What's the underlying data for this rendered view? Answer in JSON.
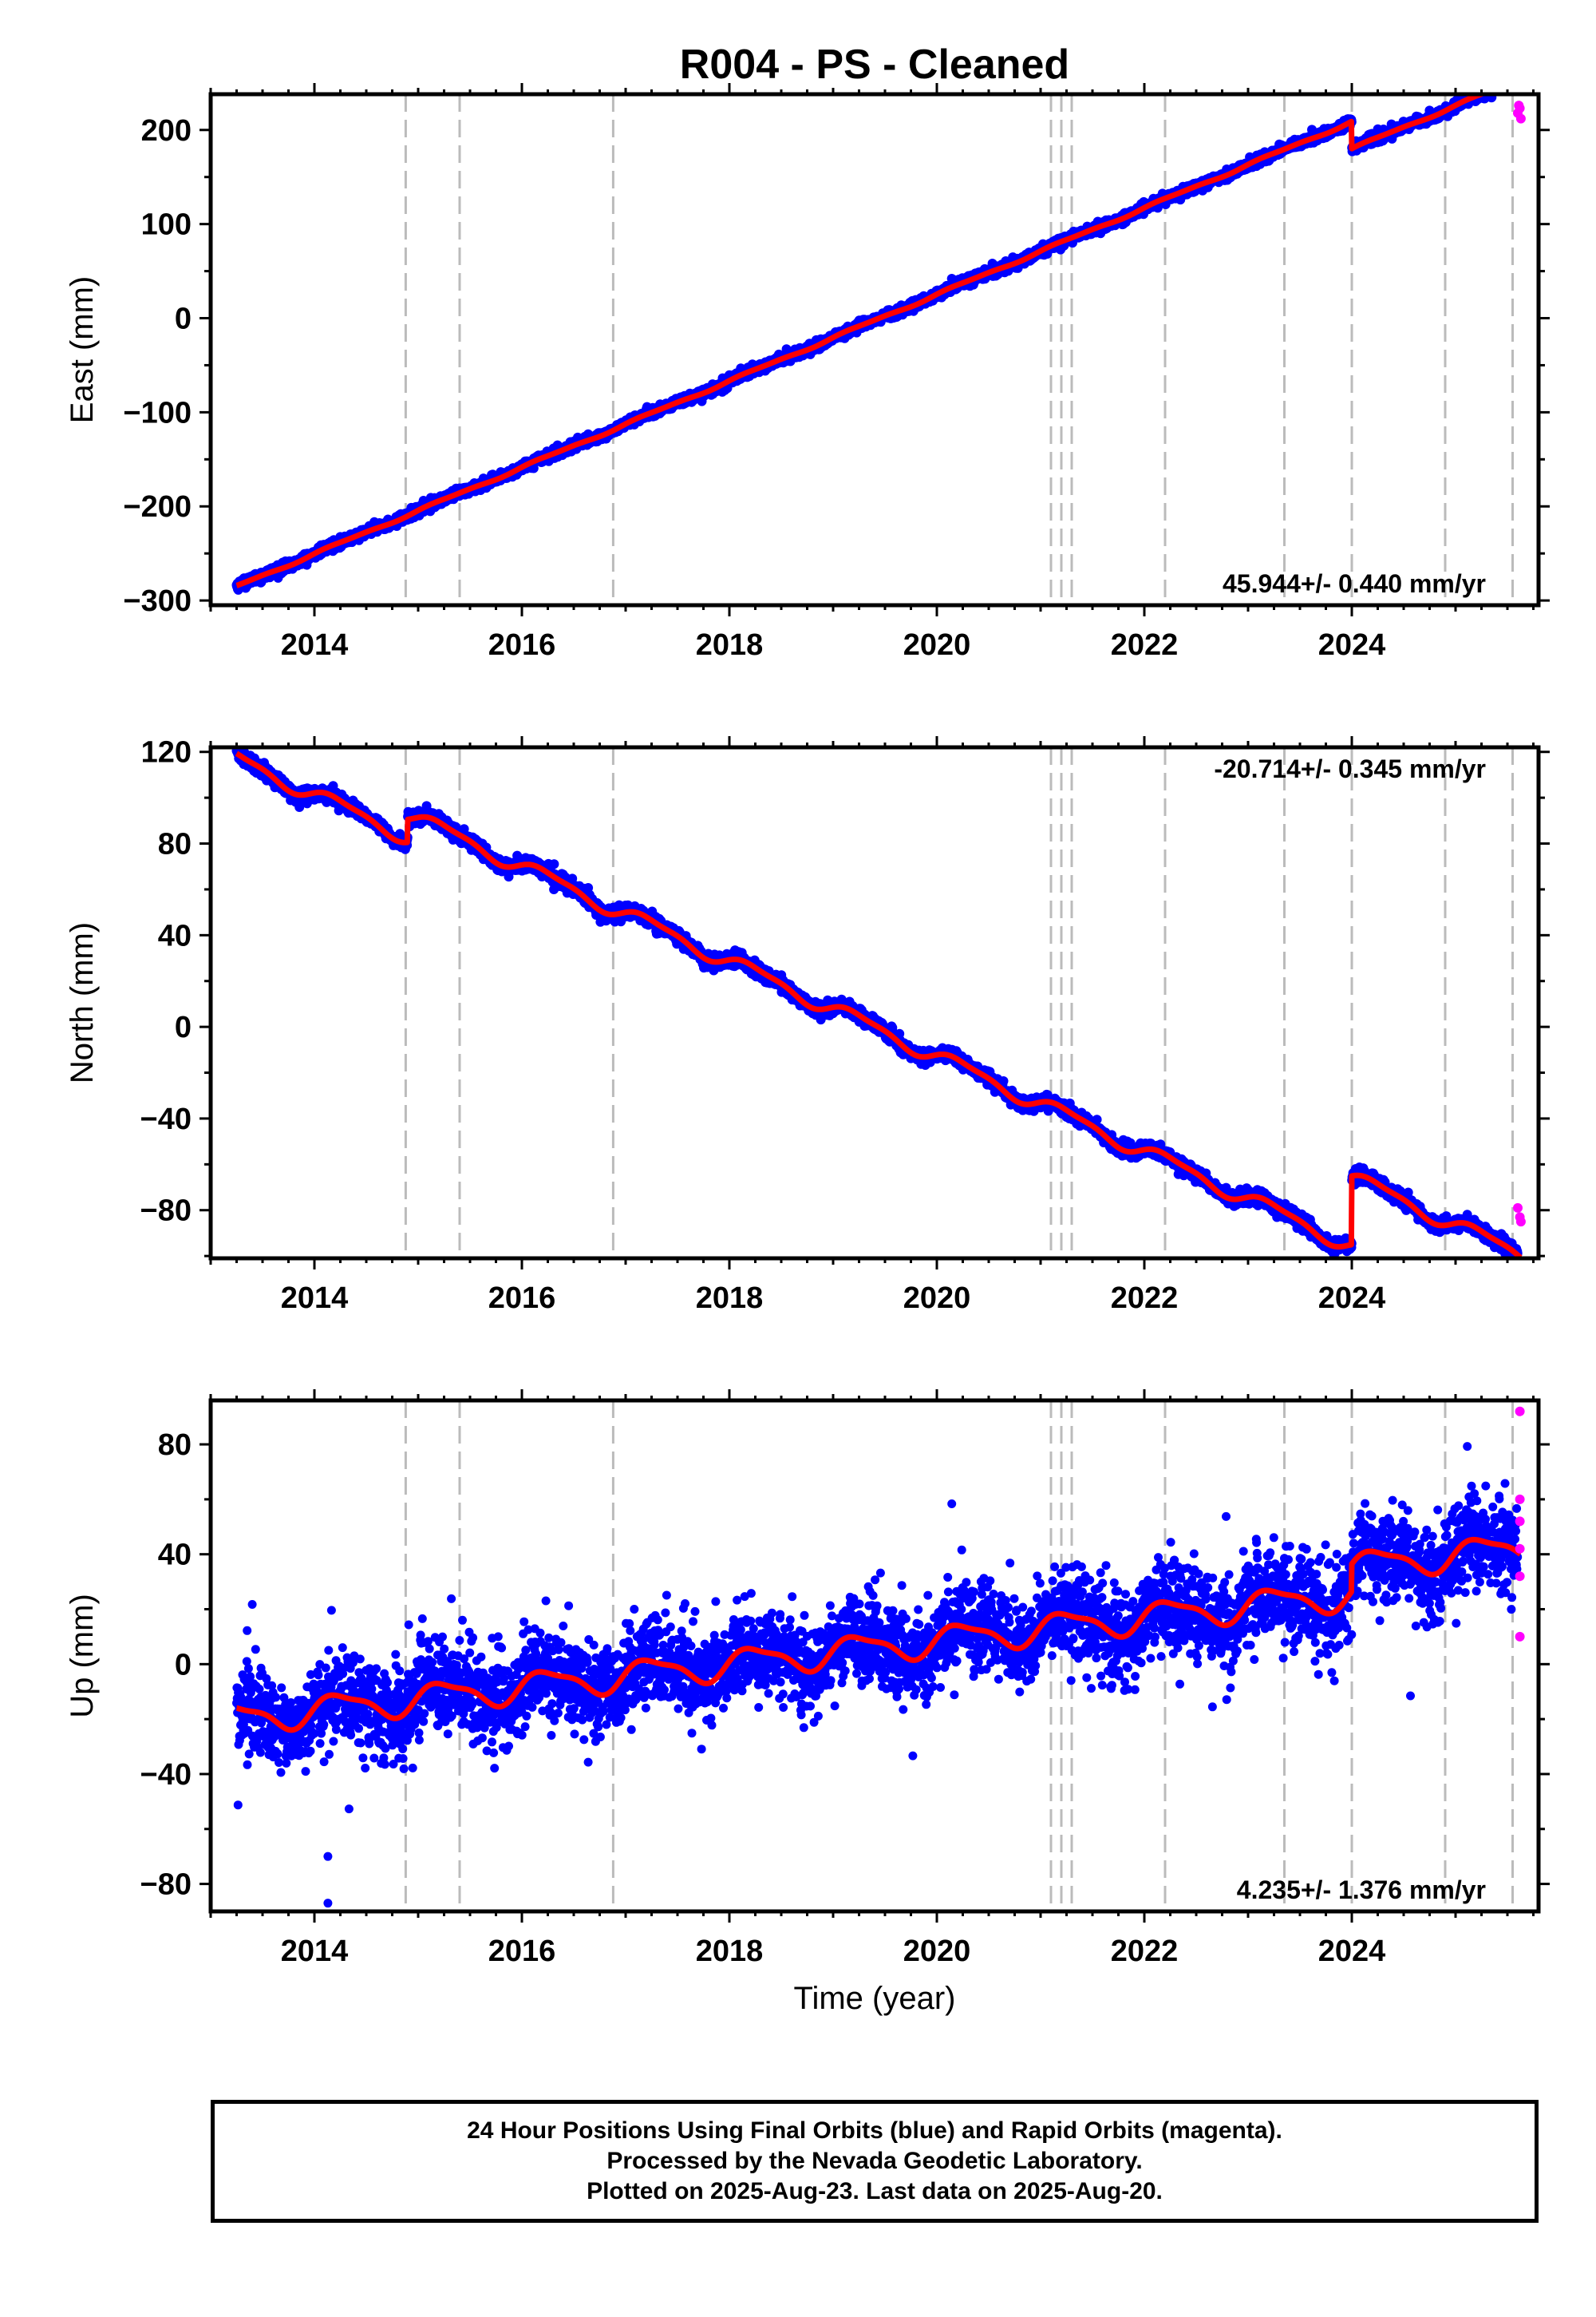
{
  "title": "R004  - PS - Cleaned",
  "footer": {
    "line1": "24 Hour Positions Using Final Orbits (blue) and Rapid Orbits (magenta).",
    "line2": "Processed by the Nevada Geodetic Laboratory.",
    "line3": "Plotted on 2025-Aug-23. Last data on 2025-Aug-20."
  },
  "colors": {
    "final": "#0000ff",
    "rapid": "#ff00ff",
    "model": "#ff0000",
    "event_line": "#bbbbbb"
  },
  "chart_data": [
    {
      "type": "scatter",
      "ylabel": "East (mm)",
      "xlabel": "",
      "xlim": [
        2013.0,
        2025.8
      ],
      "ylim": [
        -305,
        238
      ],
      "yticks": [
        -300,
        -200,
        -100,
        0,
        100,
        200
      ],
      "ytick_labels": [
        "−300",
        "−200",
        "−100",
        "0",
        "100",
        "200"
      ],
      "xticks": [
        2014,
        2016,
        2018,
        2020,
        2022,
        2024
      ],
      "rate_label": "45.944+/- 0.440 mm/yr",
      "rate_position": "bottom-right",
      "start": 2013.25,
      "end": 2025.63,
      "trend": {
        "t0": 2013.25,
        "y0": -285,
        "slope": 45.944
      },
      "offsets": [
        {
          "t": 2024.0,
          "dy": -29
        }
      ],
      "seasonal": {
        "amp1": 1.2,
        "amp2": 0.5
      },
      "noise": 2.5,
      "rapid_points": [
        {
          "x": 2025.6,
          "y": 218
        },
        {
          "x": 2025.62,
          "y": 223
        },
        {
          "x": 2025.63,
          "y": 212
        },
        {
          "x": 2025.61,
          "y": 226
        }
      ]
    },
    {
      "type": "scatter",
      "ylabel": "North (mm)",
      "xlabel": "",
      "xlim": [
        2013.0,
        2025.8
      ],
      "ylim": [
        -101,
        122
      ],
      "yticks": [
        -80,
        -40,
        0,
        40,
        80,
        120
      ],
      "ytick_labels": [
        "−80",
        "−40",
        "0",
        "40",
        "80",
        "120"
      ],
      "xticks": [
        2014,
        2016,
        2018,
        2020,
        2022,
        2024
      ],
      "rate_label": "-20.714+/- 0.345 mm/yr",
      "rate_position": "top-right",
      "start": 2013.25,
      "end": 2025.63,
      "trend": {
        "t0": 2013.25,
        "y0": 117,
        "slope": -20.714
      },
      "offsets": [
        {
          "t": 2014.9,
          "dy": 10
        },
        {
          "t": 2024.0,
          "dy": 30
        }
      ],
      "seasonal": {
        "amp1": 3.0,
        "amp2": 1.0
      },
      "noise": 1.5,
      "rapid_points": [
        {
          "x": 2025.6,
          "y": -79
        },
        {
          "x": 2025.62,
          "y": -83
        },
        {
          "x": 2025.63,
          "y": -85
        }
      ]
    },
    {
      "type": "scatter",
      "ylabel": "Up (mm)",
      "xlabel": "Time (year)",
      "xlim": [
        2013.0,
        2025.8
      ],
      "ylim": [
        -90,
        96
      ],
      "yticks": [
        -80,
        -40,
        0,
        40,
        80
      ],
      "ytick_labels": [
        "−80",
        "−40",
        "0",
        "40",
        "80"
      ],
      "xticks": [
        2014,
        2016,
        2018,
        2020,
        2022,
        2024
      ],
      "rate_label": "4.235+/- 1.376 mm/yr",
      "rate_position": "bottom-right",
      "start": 2013.25,
      "end": 2025.63,
      "trend": {
        "t0": 2013.25,
        "y0": -20,
        "slope": 4.235
      },
      "offsets": [
        {
          "t": 2024.0,
          "dy": 10
        }
      ],
      "seasonal": {
        "amp1": 5.0,
        "amp2": 1.5
      },
      "noise": 8,
      "rapid_points": [
        {
          "x": 2025.62,
          "y": 92
        },
        {
          "x": 2025.62,
          "y": 60
        },
        {
          "x": 2025.62,
          "y": 52
        },
        {
          "x": 2025.62,
          "y": 42
        },
        {
          "x": 2025.62,
          "y": 32
        },
        {
          "x": 2025.62,
          "y": 10
        }
      ],
      "outliers": [
        {
          "x": 2014.13,
          "y": -70
        },
        {
          "x": 2014.13,
          "y": -87
        }
      ]
    }
  ],
  "event_lines": [
    2014.88,
    2015.4,
    2016.88,
    2021.1,
    2021.2,
    2021.3,
    2022.2,
    2023.35,
    2024.0,
    2024.9,
    2025.55
  ]
}
